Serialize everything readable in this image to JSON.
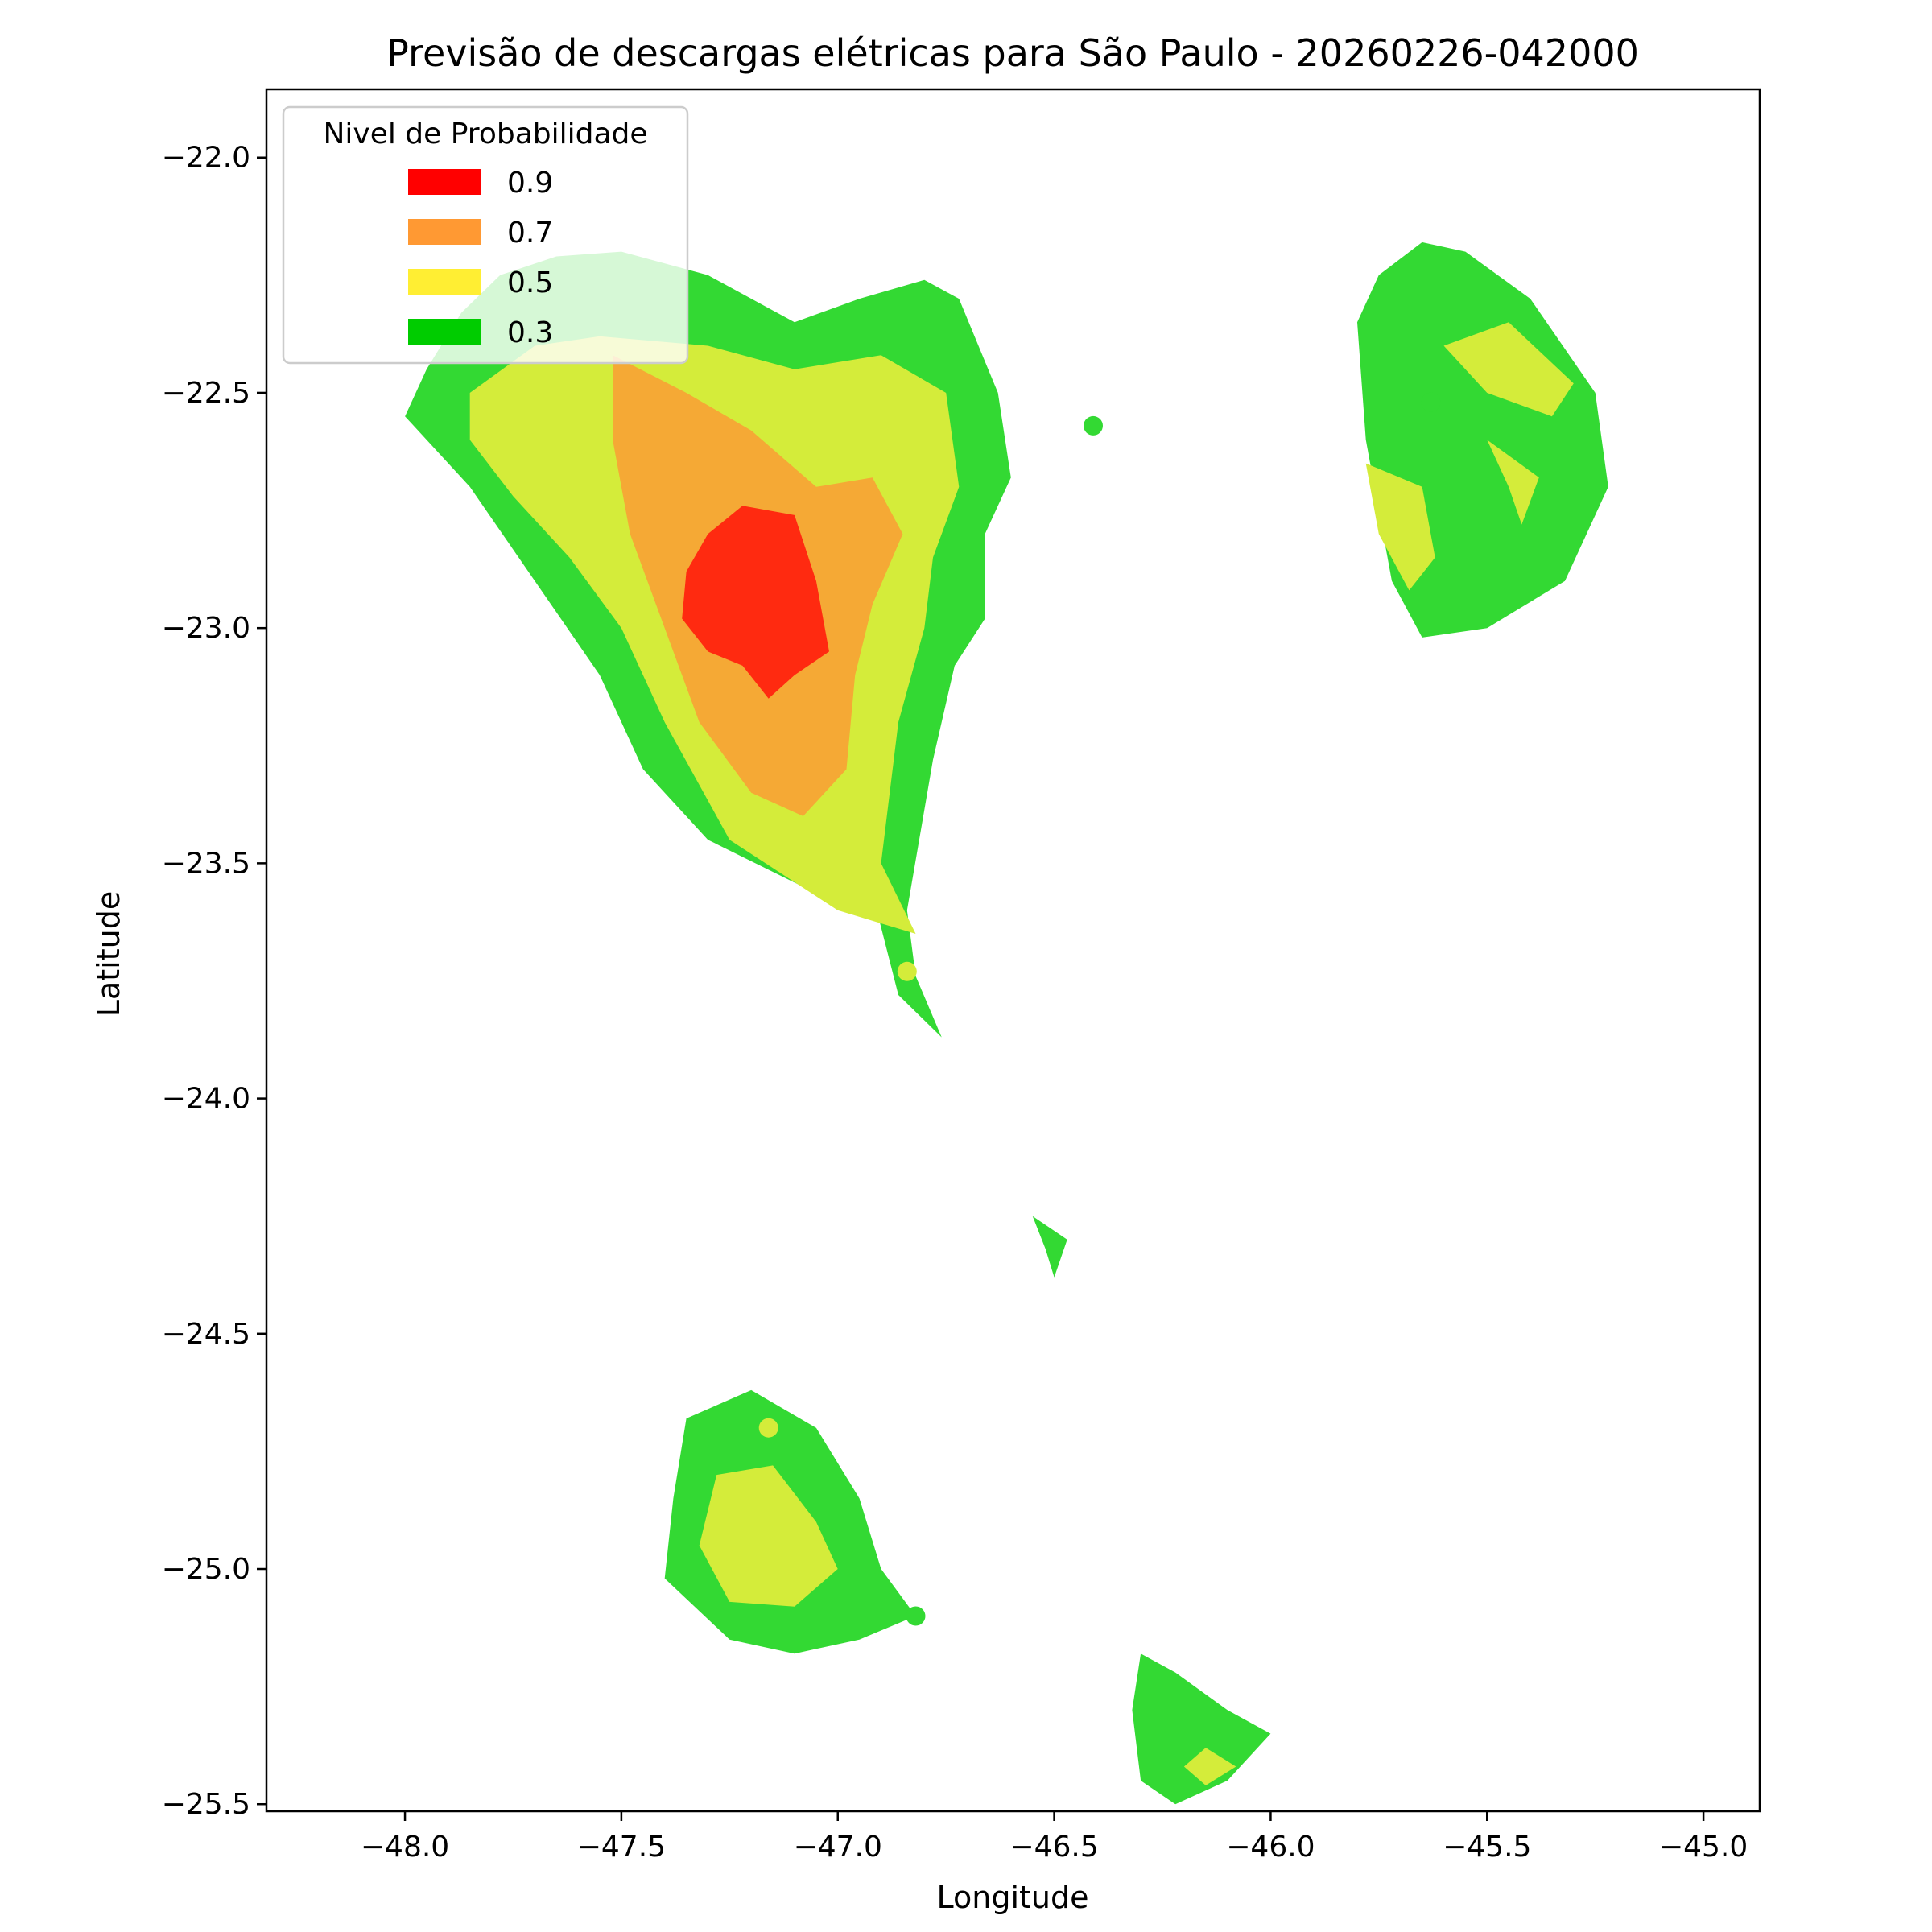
{
  "chart_data": {
    "type": "heatmap",
    "title": "Previsão de descargas elétricas para São Paulo - 20260226-042000",
    "xlabel": "Longitude",
    "ylabel": "Latitude",
    "xlim": [
      -48.32,
      -44.87
    ],
    "ylim": [
      -25.515,
      -21.855
    ],
    "xticks": [
      -48.0,
      -47.5,
      -47.0,
      -46.5,
      -46.0,
      -45.5,
      -45.0
    ],
    "yticks": [
      -22.0,
      -22.5,
      -23.0,
      -23.5,
      -24.0,
      -24.5,
      -25.0,
      -25.5
    ],
    "xtick_labels": [
      "−48.0",
      "−47.5",
      "−47.0",
      "−46.5",
      "−46.0",
      "−45.5",
      "−45.0"
    ],
    "ytick_labels": [
      "−22.0",
      "−22.5",
      "−23.0",
      "−23.5",
      "−24.0",
      "−24.5",
      "−25.0",
      "−25.5"
    ],
    "grid": false,
    "legend": {
      "title": "Nivel de Probabilidade",
      "placement": "top-left",
      "entries": [
        {
          "label": "0.9",
          "color": "#ff0000"
        },
        {
          "label": "0.7",
          "color": "#ff9933"
        },
        {
          "label": "0.5",
          "color": "#ffee33"
        },
        {
          "label": "0.3",
          "color": "#00cc00"
        }
      ]
    },
    "level_colors": {
      "0.3": "#33d933",
      "0.5": "#d4ec3a",
      "0.7": "#f5a935",
      "0.9": "#ff2a10"
    },
    "regions": [
      {
        "name": "northwest-cell",
        "layers": [
          {
            "level": "0.3",
            "points": [
              [
                -47.95,
                -22.45
              ],
              [
                -47.87,
                -22.33
              ],
              [
                -47.78,
                -22.25
              ],
              [
                -47.65,
                -22.21
              ],
              [
                -47.5,
                -22.2
              ],
              [
                -47.3,
                -22.25
              ],
              [
                -47.1,
                -22.35
              ],
              [
                -46.95,
                -22.3
              ],
              [
                -46.8,
                -22.26
              ],
              [
                -46.72,
                -22.3
              ],
              [
                -46.63,
                -22.5
              ],
              [
                -46.6,
                -22.68
              ],
              [
                -46.66,
                -22.8
              ],
              [
                -46.66,
                -22.98
              ],
              [
                -46.73,
                -23.08
              ],
              [
                -46.78,
                -23.28
              ],
              [
                -46.84,
                -23.6
              ],
              [
                -46.82,
                -23.74
              ],
              [
                -46.76,
                -23.87
              ],
              [
                -46.86,
                -23.78
              ],
              [
                -46.91,
                -23.6
              ],
              [
                -47.08,
                -23.55
              ],
              [
                -47.3,
                -23.45
              ],
              [
                -47.45,
                -23.3
              ],
              [
                -47.55,
                -23.1
              ],
              [
                -47.7,
                -22.9
              ],
              [
                -47.85,
                -22.7
              ],
              [
                -48.0,
                -22.55
              ]
            ]
          },
          {
            "level": "0.5",
            "points": [
              [
                -47.85,
                -22.5
              ],
              [
                -47.7,
                -22.4
              ],
              [
                -47.55,
                -22.38
              ],
              [
                -47.3,
                -22.4
              ],
              [
                -47.1,
                -22.45
              ],
              [
                -46.9,
                -22.42
              ],
              [
                -46.75,
                -22.5
              ],
              [
                -46.72,
                -22.7
              ],
              [
                -46.78,
                -22.85
              ],
              [
                -46.8,
                -23.0
              ],
              [
                -46.86,
                -23.2
              ],
              [
                -46.9,
                -23.5
              ],
              [
                -46.82,
                -23.65
              ],
              [
                -47.0,
                -23.6
              ],
              [
                -47.25,
                -23.45
              ],
              [
                -47.4,
                -23.2
              ],
              [
                -47.5,
                -23.0
              ],
              [
                -47.62,
                -22.85
              ],
              [
                -47.75,
                -22.72
              ],
              [
                -47.85,
                -22.6
              ]
            ]
          },
          {
            "level": "0.7",
            "points": [
              [
                -47.52,
                -22.42
              ],
              [
                -47.35,
                -22.5
              ],
              [
                -47.2,
                -22.58
              ],
              [
                -47.05,
                -22.7
              ],
              [
                -46.92,
                -22.68
              ],
              [
                -46.85,
                -22.8
              ],
              [
                -46.92,
                -22.95
              ],
              [
                -46.96,
                -23.1
              ],
              [
                -46.98,
                -23.3
              ],
              [
                -47.08,
                -23.4
              ],
              [
                -47.2,
                -23.35
              ],
              [
                -47.32,
                -23.2
              ],
              [
                -47.4,
                -23.0
              ],
              [
                -47.48,
                -22.8
              ],
              [
                -47.52,
                -22.6
              ]
            ]
          },
          {
            "level": "0.9",
            "points": [
              [
                -47.3,
                -22.8
              ],
              [
                -47.22,
                -22.74
              ],
              [
                -47.1,
                -22.76
              ],
              [
                -47.05,
                -22.9
              ],
              [
                -47.02,
                -23.05
              ],
              [
                -47.1,
                -23.1
              ],
              [
                -47.16,
                -23.15
              ],
              [
                -47.22,
                -23.08
              ],
              [
                -47.3,
                -23.05
              ],
              [
                -47.36,
                -22.98
              ],
              [
                -47.35,
                -22.88
              ]
            ]
          }
        ]
      },
      {
        "name": "northeast-cell",
        "layers": [
          {
            "level": "0.3",
            "points": [
              [
                -45.8,
                -22.35
              ],
              [
                -45.75,
                -22.25
              ],
              [
                -45.65,
                -22.18
              ],
              [
                -45.55,
                -22.2
              ],
              [
                -45.4,
                -22.3
              ],
              [
                -45.25,
                -22.5
              ],
              [
                -45.22,
                -22.7
              ],
              [
                -45.32,
                -22.9
              ],
              [
                -45.5,
                -23.0
              ],
              [
                -45.65,
                -23.02
              ],
              [
                -45.72,
                -22.9
              ],
              [
                -45.78,
                -22.6
              ]
            ]
          },
          {
            "level": "0.5",
            "points": [
              [
                -45.45,
                -22.35
              ],
              [
                -45.3,
                -22.48
              ],
              [
                -45.35,
                -22.55
              ],
              [
                -45.5,
                -22.5
              ],
              [
                -45.6,
                -22.4
              ]
            ]
          },
          {
            "level": "0.5",
            "points": [
              [
                -45.78,
                -22.65
              ],
              [
                -45.75,
                -22.8
              ],
              [
                -45.68,
                -22.92
              ],
              [
                -45.62,
                -22.85
              ],
              [
                -45.65,
                -22.7
              ]
            ]
          },
          {
            "level": "0.5",
            "points": [
              [
                -45.5,
                -22.6
              ],
              [
                -45.45,
                -22.7
              ],
              [
                -45.42,
                -22.78
              ],
              [
                -45.38,
                -22.68
              ]
            ]
          }
        ]
      },
      {
        "name": "south-cell",
        "layers": [
          {
            "level": "0.3",
            "points": [
              [
                -47.35,
                -24.68
              ],
              [
                -47.2,
                -24.62
              ],
              [
                -47.05,
                -24.7
              ],
              [
                -46.95,
                -24.85
              ],
              [
                -46.9,
                -25.0
              ],
              [
                -46.82,
                -25.1
              ],
              [
                -46.95,
                -25.15
              ],
              [
                -47.1,
                -25.18
              ],
              [
                -47.25,
                -25.15
              ],
              [
                -47.4,
                -25.02
              ],
              [
                -47.38,
                -24.85
              ]
            ]
          },
          {
            "level": "0.5",
            "points": [
              [
                -47.28,
                -24.8
              ],
              [
                -47.15,
                -24.78
              ],
              [
                -47.05,
                -24.9
              ],
              [
                -47.0,
                -25.0
              ],
              [
                -47.1,
                -25.08
              ],
              [
                -47.25,
                -25.07
              ],
              [
                -47.32,
                -24.95
              ]
            ]
          }
        ]
      },
      {
        "name": "southeast-cell",
        "layers": [
          {
            "level": "0.3",
            "points": [
              [
                -46.3,
                -25.18
              ],
              [
                -46.22,
                -25.22
              ],
              [
                -46.1,
                -25.3
              ],
              [
                -46.0,
                -25.35
              ],
              [
                -46.1,
                -25.45
              ],
              [
                -46.22,
                -25.5
              ],
              [
                -46.3,
                -25.45
              ],
              [
                -46.32,
                -25.3
              ]
            ]
          },
          {
            "level": "0.5",
            "points": [
              [
                -46.15,
                -25.38
              ],
              [
                -46.08,
                -25.42
              ],
              [
                -46.15,
                -25.46
              ],
              [
                -46.2,
                -25.42
              ]
            ]
          }
        ]
      },
      {
        "name": "isolated-patch",
        "layers": [
          {
            "level": "0.3",
            "points": [
              [
                -46.55,
                -24.25
              ],
              [
                -46.47,
                -24.3
              ],
              [
                -46.5,
                -24.38
              ],
              [
                -46.52,
                -24.32
              ]
            ]
          }
        ]
      }
    ],
    "dots": [
      {
        "lon": -47.69,
        "lat": -22.67,
        "level": "0.5"
      },
      {
        "lon": -46.84,
        "lat": -23.73,
        "level": "0.5"
      },
      {
        "lon": -46.41,
        "lat": -22.57,
        "level": "0.3"
      },
      {
        "lon": -45.63,
        "lat": -22.52,
        "level": "0.3"
      },
      {
        "lon": -45.69,
        "lat": -22.74,
        "level": "0.5"
      },
      {
        "lon": -45.47,
        "lat": -22.46,
        "level": "0.5"
      },
      {
        "lon": -47.16,
        "lat": -24.7,
        "level": "0.5"
      },
      {
        "lon": -46.82,
        "lat": -25.1,
        "level": "0.3"
      }
    ]
  }
}
